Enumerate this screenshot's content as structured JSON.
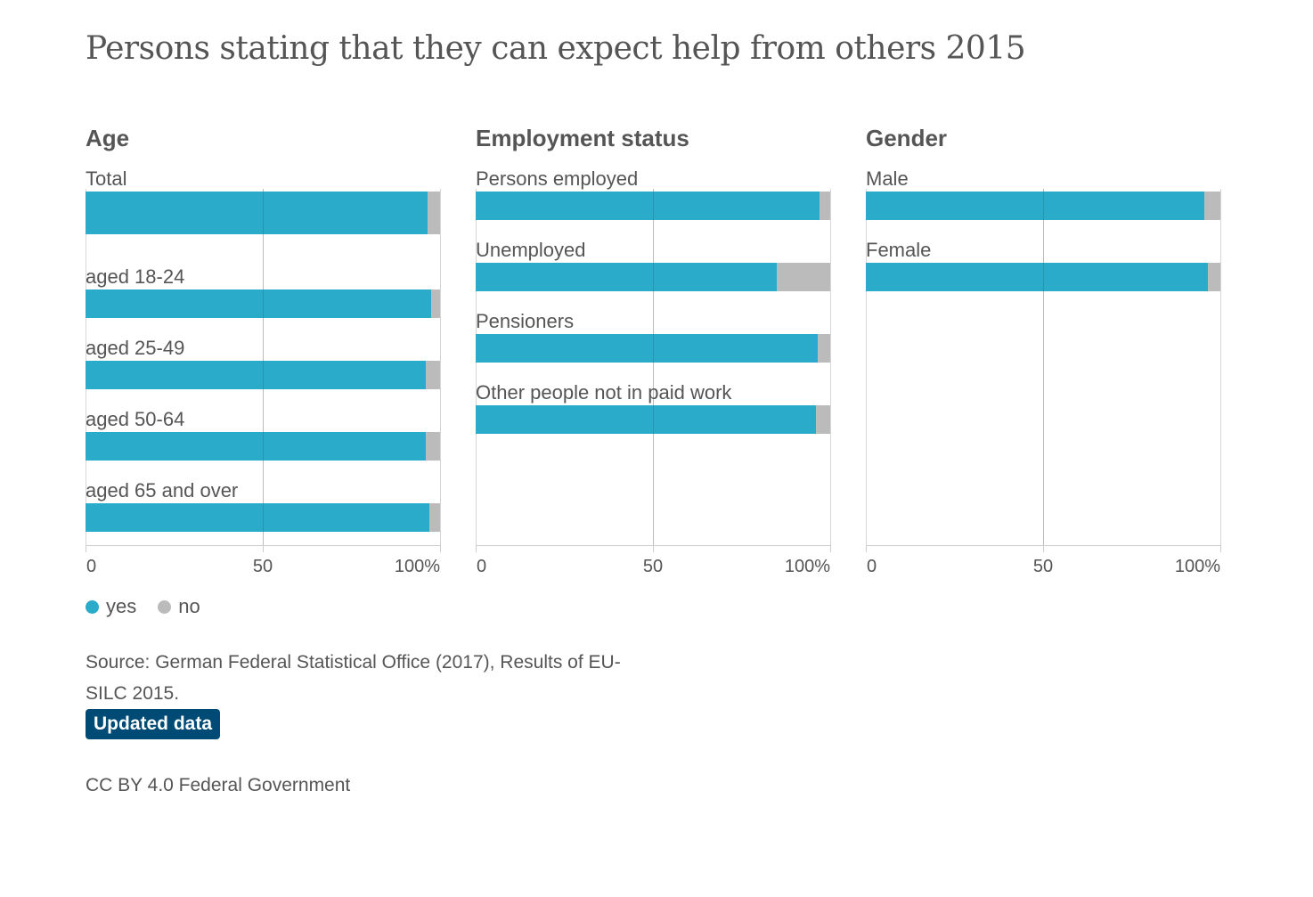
{
  "title": "Persons stating that they can expect help from others 2015",
  "colors": {
    "yes": "#2aabc9",
    "no": "#bbbbbb",
    "text": "#555555",
    "grid": "#d6d6d6",
    "badge": "#004b76"
  },
  "legend": {
    "yes_label": "yes",
    "no_label": "no"
  },
  "source": "Source: German Federal Statistical Office (2017), Results of EU-SILC 2015.",
  "updated_label": "Updated data",
  "license": "CC BY 4.0 Federal Government",
  "chart_data": [
    {
      "type": "bar",
      "orientation": "horizontal",
      "stacked": true,
      "title": "Age",
      "categories": [
        "Total",
        "aged 18-24",
        "aged 25-49",
        "aged 50-64",
        "aged 65 and over"
      ],
      "series": [
        {
          "name": "yes",
          "values": [
            96.5,
            97.5,
            96,
            96,
            97
          ]
        },
        {
          "name": "no",
          "values": [
            3.5,
            2.5,
            4,
            4,
            3
          ]
        }
      ],
      "xlim": [
        0,
        100
      ],
      "xticks": [
        "0",
        "50",
        "100%"
      ],
      "grid": true
    },
    {
      "type": "bar",
      "orientation": "horizontal",
      "stacked": true,
      "title": "Employment status",
      "categories": [
        "Persons employed",
        "Unemployed",
        "Pensioners",
        "Other people not in paid work"
      ],
      "series": [
        {
          "name": "yes",
          "values": [
            97,
            85,
            96.5,
            96
          ]
        },
        {
          "name": "no",
          "values": [
            3,
            15,
            3.5,
            4
          ]
        }
      ],
      "xlim": [
        0,
        100
      ],
      "xticks": [
        "0",
        "50",
        "100%"
      ],
      "grid": true
    },
    {
      "type": "bar",
      "orientation": "horizontal",
      "stacked": true,
      "title": "Gender",
      "categories": [
        "Male",
        "Female"
      ],
      "series": [
        {
          "name": "yes",
          "values": [
            95.5,
            96.5
          ]
        },
        {
          "name": "no",
          "values": [
            4.5,
            3.5
          ]
        }
      ],
      "xlim": [
        0,
        100
      ],
      "xticks": [
        "0",
        "50",
        "100%"
      ],
      "grid": true
    }
  ]
}
